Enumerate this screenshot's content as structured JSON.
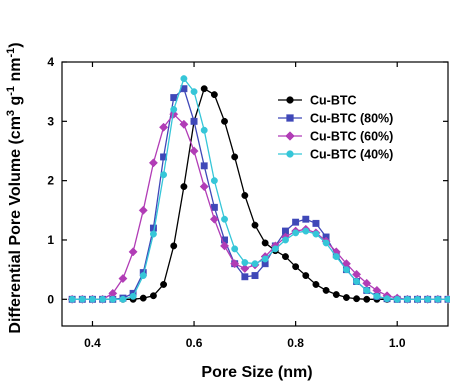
{
  "chart_data": {
    "type": "line",
    "title": "",
    "xlabel": "Pore Size (nm)",
    "ylabel_parts": [
      "Differential Pore Volume (cm",
      "3",
      " g",
      "-1",
      " nm",
      "-1",
      ")"
    ],
    "xlim": [
      0.34,
      1.1
    ],
    "ylim": [
      -0.45,
      4.0
    ],
    "xticks": [
      0.4,
      0.6,
      0.8,
      1.0
    ],
    "xtick_labels": [
      "0.4",
      "0.6",
      "0.8",
      "1.0"
    ],
    "yticks": [
      0,
      1,
      2,
      3,
      4
    ],
    "ytick_labels": [
      "0",
      "1",
      "2",
      "3",
      "4"
    ],
    "grid": false,
    "legend_position": "top-right",
    "series": [
      {
        "name": "Cu-BTC",
        "color": "#000000",
        "marker": "circle",
        "points": [
          [
            0.36,
            0
          ],
          [
            0.38,
            0
          ],
          [
            0.4,
            0
          ],
          [
            0.42,
            0
          ],
          [
            0.44,
            0
          ],
          [
            0.46,
            0
          ],
          [
            0.48,
            0
          ],
          [
            0.5,
            0.02
          ],
          [
            0.52,
            0.06
          ],
          [
            0.54,
            0.25
          ],
          [
            0.56,
            0.9
          ],
          [
            0.58,
            1.9
          ],
          [
            0.6,
            3.0
          ],
          [
            0.62,
            3.55
          ],
          [
            0.64,
            3.45
          ],
          [
            0.66,
            3.0
          ],
          [
            0.68,
            2.4
          ],
          [
            0.7,
            1.75
          ],
          [
            0.72,
            1.25
          ],
          [
            0.74,
            0.95
          ],
          [
            0.76,
            0.82
          ],
          [
            0.78,
            0.72
          ],
          [
            0.8,
            0.55
          ],
          [
            0.82,
            0.4
          ],
          [
            0.84,
            0.25
          ],
          [
            0.86,
            0.15
          ],
          [
            0.88,
            0.08
          ],
          [
            0.9,
            0.03
          ],
          [
            0.92,
            0.01
          ],
          [
            0.94,
            0
          ],
          [
            0.96,
            0
          ],
          [
            0.98,
            0
          ],
          [
            1.0,
            0
          ],
          [
            1.02,
            0
          ],
          [
            1.04,
            0
          ],
          [
            1.06,
            0
          ],
          [
            1.08,
            0
          ],
          [
            1.1,
            0
          ]
        ]
      },
      {
        "name": "Cu-BTC (80%)",
        "color": "#3f48b8",
        "marker": "square",
        "points": [
          [
            0.36,
            0
          ],
          [
            0.38,
            0
          ],
          [
            0.4,
            0
          ],
          [
            0.42,
            0
          ],
          [
            0.44,
            0
          ],
          [
            0.46,
            0.02
          ],
          [
            0.48,
            0.1
          ],
          [
            0.5,
            0.45
          ],
          [
            0.52,
            1.2
          ],
          [
            0.54,
            2.4
          ],
          [
            0.56,
            3.4
          ],
          [
            0.58,
            3.55
          ],
          [
            0.6,
            3.0
          ],
          [
            0.62,
            2.25
          ],
          [
            0.64,
            1.55
          ],
          [
            0.66,
            1.0
          ],
          [
            0.68,
            0.6
          ],
          [
            0.7,
            0.38
          ],
          [
            0.72,
            0.4
          ],
          [
            0.74,
            0.6
          ],
          [
            0.76,
            0.9
          ],
          [
            0.78,
            1.15
          ],
          [
            0.8,
            1.3
          ],
          [
            0.82,
            1.35
          ],
          [
            0.84,
            1.28
          ],
          [
            0.86,
            1.05
          ],
          [
            0.88,
            0.75
          ],
          [
            0.9,
            0.5
          ],
          [
            0.92,
            0.3
          ],
          [
            0.94,
            0.15
          ],
          [
            0.96,
            0.05
          ],
          [
            0.98,
            0.01
          ],
          [
            1.0,
            0
          ],
          [
            1.02,
            0
          ],
          [
            1.04,
            0
          ],
          [
            1.06,
            0
          ],
          [
            1.08,
            0
          ],
          [
            1.1,
            0
          ]
        ]
      },
      {
        "name": "Cu-BTC (60%)",
        "color": "#b13cb6",
        "marker": "diamond",
        "points": [
          [
            0.36,
            0
          ],
          [
            0.38,
            0
          ],
          [
            0.4,
            0
          ],
          [
            0.42,
            0
          ],
          [
            0.44,
            0.1
          ],
          [
            0.46,
            0.35
          ],
          [
            0.48,
            0.8
          ],
          [
            0.5,
            1.5
          ],
          [
            0.52,
            2.3
          ],
          [
            0.54,
            2.9
          ],
          [
            0.56,
            3.12
          ],
          [
            0.58,
            2.95
          ],
          [
            0.6,
            2.5
          ],
          [
            0.62,
            1.9
          ],
          [
            0.64,
            1.35
          ],
          [
            0.66,
            0.9
          ],
          [
            0.68,
            0.6
          ],
          [
            0.7,
            0.52
          ],
          [
            0.72,
            0.58
          ],
          [
            0.74,
            0.72
          ],
          [
            0.76,
            0.9
          ],
          [
            0.78,
            1.05
          ],
          [
            0.8,
            1.15
          ],
          [
            0.82,
            1.18
          ],
          [
            0.84,
            1.12
          ],
          [
            0.86,
            0.98
          ],
          [
            0.88,
            0.8
          ],
          [
            0.9,
            0.6
          ],
          [
            0.92,
            0.42
          ],
          [
            0.94,
            0.27
          ],
          [
            0.96,
            0.15
          ],
          [
            0.98,
            0.06
          ],
          [
            1.0,
            0.02
          ],
          [
            1.02,
            0
          ],
          [
            1.04,
            0
          ],
          [
            1.06,
            0
          ],
          [
            1.08,
            0
          ],
          [
            1.1,
            0
          ]
        ]
      },
      {
        "name": "Cu-BTC (40%)",
        "color": "#35c6d8",
        "marker": "circle",
        "points": [
          [
            0.36,
            0
          ],
          [
            0.38,
            0
          ],
          [
            0.4,
            0
          ],
          [
            0.42,
            0
          ],
          [
            0.44,
            0
          ],
          [
            0.46,
            0
          ],
          [
            0.48,
            0.05
          ],
          [
            0.5,
            0.4
          ],
          [
            0.52,
            1.1
          ],
          [
            0.54,
            2.1
          ],
          [
            0.56,
            3.2
          ],
          [
            0.58,
            3.72
          ],
          [
            0.6,
            3.5
          ],
          [
            0.62,
            2.85
          ],
          [
            0.64,
            2.0
          ],
          [
            0.66,
            1.35
          ],
          [
            0.68,
            0.85
          ],
          [
            0.7,
            0.62
          ],
          [
            0.72,
            0.6
          ],
          [
            0.74,
            0.68
          ],
          [
            0.76,
            0.85
          ],
          [
            0.78,
            1.0
          ],
          [
            0.8,
            1.12
          ],
          [
            0.82,
            1.15
          ],
          [
            0.84,
            1.1
          ],
          [
            0.86,
            0.95
          ],
          [
            0.88,
            0.72
          ],
          [
            0.9,
            0.5
          ],
          [
            0.92,
            0.3
          ],
          [
            0.94,
            0.15
          ],
          [
            0.96,
            0.05
          ],
          [
            0.98,
            0.01
          ],
          [
            1.0,
            0
          ],
          [
            1.02,
            0
          ],
          [
            1.04,
            0
          ],
          [
            1.06,
            0
          ],
          [
            1.08,
            0
          ],
          [
            1.1,
            0
          ]
        ]
      }
    ]
  }
}
